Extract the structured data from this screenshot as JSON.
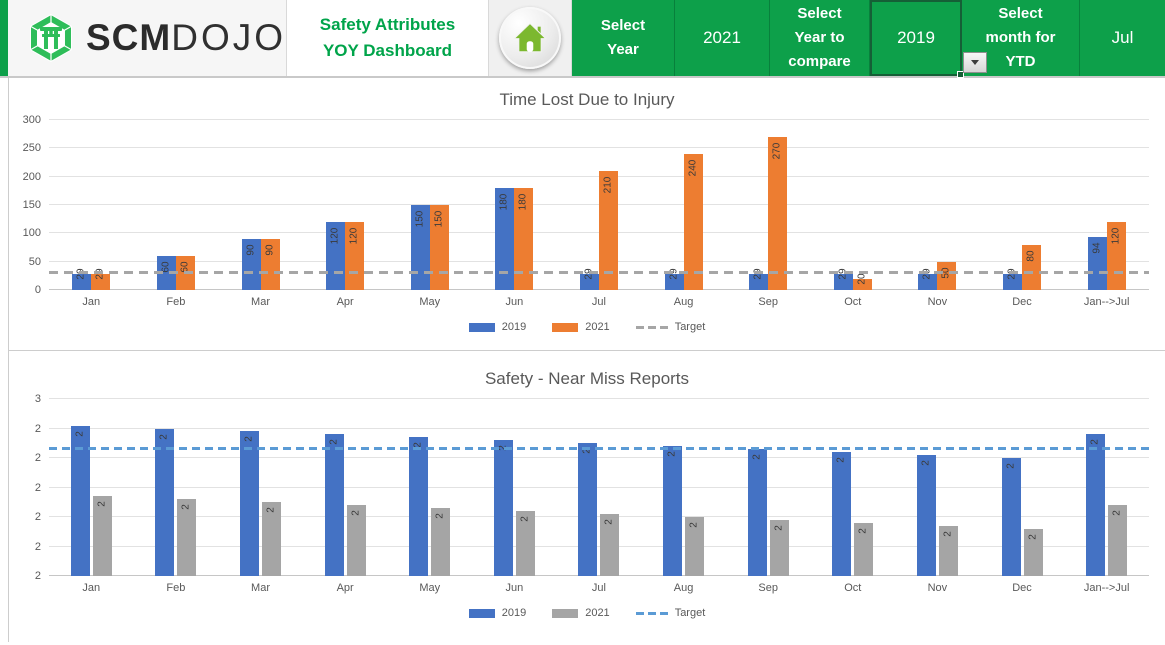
{
  "header": {
    "logo": {
      "brand_bold": "SCM",
      "brand_light": "DOJO"
    },
    "title_line1": "Safety Attributes",
    "title_line2": "YOY Dashboard",
    "select_year_label": "Select Year",
    "select_year_value": "2021",
    "select_compare_label": "Select Year to compare",
    "select_compare_label_l1": "Select",
    "select_compare_label_l2": "Year to",
    "select_compare_label_l3": "compare",
    "select_year_label_l1": "Select",
    "select_year_label_l2": "Year",
    "select_compare_value": "2019",
    "select_month_label": "Select month for YTD",
    "select_month_label_l1": "Select",
    "select_month_label_l2": "month for",
    "select_month_label_l3": "YTD",
    "select_month_value": "Jul"
  },
  "colors": {
    "header_green": "#0da04a",
    "logo_green": "#2ebd59",
    "title_text_green": "#00a44a",
    "home_icon_green": "#7cb82f",
    "series_blue": "#4472C4",
    "series_orange": "#ED7D31",
    "series_gray": "#A5A5A5",
    "target_gray": "#A6A6A6",
    "target_blue": "#5B9BD5"
  },
  "chart_data": [
    {
      "type": "bar",
      "title": "Time Lost Due to Injury",
      "categories": [
        "Jan",
        "Feb",
        "Mar",
        "Apr",
        "May",
        "Jun",
        "Jul",
        "Aug",
        "Sep",
        "Oct",
        "Nov",
        "Dec",
        "Jan-->Jul"
      ],
      "series": [
        {
          "name": "2019",
          "color": "#4472C4",
          "values": [
            29,
            60,
            90,
            120,
            150,
            180,
            29,
            29,
            29,
            29,
            29,
            29,
            94
          ],
          "labels": [
            "29",
            "60",
            "90",
            "120",
            "150",
            "180",
            "29",
            "29",
            "29",
            "29",
            "29",
            "29",
            "94"
          ]
        },
        {
          "name": "2021",
          "color": "#ED7D31",
          "values": [
            29,
            60,
            90,
            120,
            150,
            180,
            210,
            240,
            270,
            20,
            50,
            80,
            120
          ],
          "labels": [
            "29",
            "60",
            "90",
            "120",
            "150",
            "180",
            "210",
            "240",
            "270",
            "20",
            "50",
            "80",
            "120"
          ]
        }
      ],
      "target": {
        "name": "Target",
        "value": 30,
        "color": "#A6A6A6"
      },
      "ylim": [
        0,
        300
      ],
      "yticks": [
        0,
        50,
        100,
        150,
        200,
        250,
        300
      ],
      "ytick_labels": [
        "0",
        "50",
        "100",
        "150",
        "200",
        "250",
        "300"
      ],
      "grid": true,
      "legend_position": "bottom"
    },
    {
      "type": "bar",
      "title": "Safety - Near Miss Reports",
      "categories": [
        "Jan",
        "Feb",
        "Mar",
        "Apr",
        "May",
        "Jun",
        "Jul",
        "Aug",
        "Sep",
        "Oct",
        "Nov",
        "Dec",
        "Jan-->Jul"
      ],
      "series": [
        {
          "name": "2019",
          "color": "#4472C4",
          "values": [
            2.41,
            2.4,
            2.39,
            2.38,
            2.37,
            2.36,
            2.35,
            2.34,
            2.33,
            2.32,
            2.31,
            2.3,
            2.38
          ],
          "labels": [
            "2",
            "2",
            "2",
            "2",
            "2",
            "2",
            "2",
            "2",
            "2",
            "2",
            "2",
            "2",
            "2"
          ]
        },
        {
          "name": "2021",
          "color": "#A5A5A5",
          "values": [
            2.17,
            2.16,
            2.15,
            2.14,
            2.13,
            2.12,
            2.11,
            2.1,
            2.09,
            2.08,
            2.07,
            2.06,
            2.14
          ],
          "labels": [
            "2",
            "2",
            "2",
            "2",
            "2",
            "2",
            "2",
            "2",
            "2",
            "2",
            "2",
            "2",
            "2"
          ]
        }
      ],
      "target": {
        "name": "Target",
        "value": 2.33,
        "color": "#5B9BD5"
      },
      "ylim": [
        1.9,
        2.5
      ],
      "yticks": [
        1.9,
        2.0,
        2.1,
        2.2,
        2.3,
        2.4,
        2.5
      ],
      "ytick_labels": [
        "2",
        "2",
        "2",
        "2",
        "2",
        "2",
        "3"
      ],
      "grid": true,
      "legend_position": "bottom"
    }
  ]
}
